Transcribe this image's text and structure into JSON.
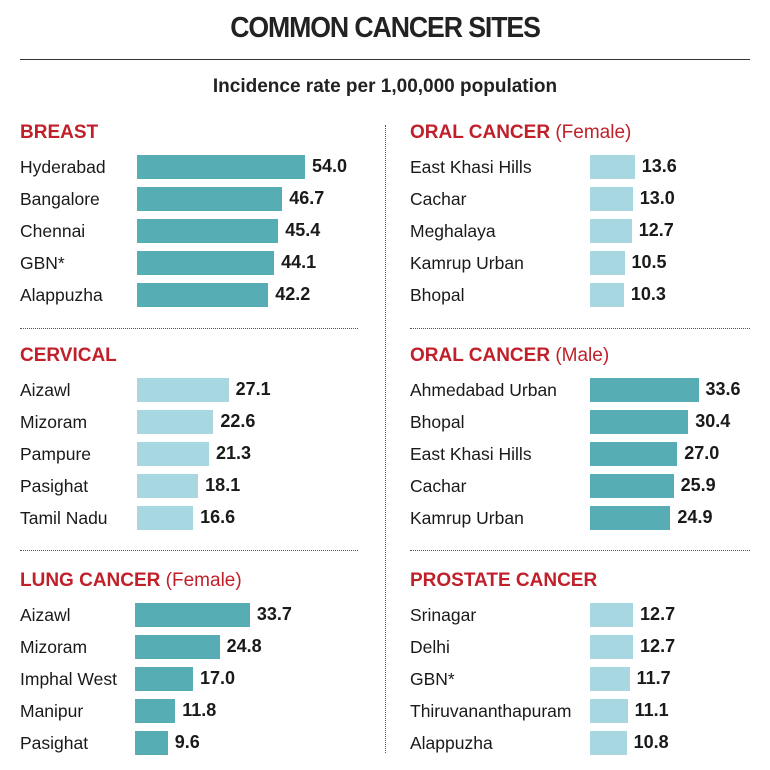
{
  "header": {
    "title": "COMMON CANCER SITES",
    "subtitle": "Incidence rate per 1,00,000 population"
  },
  "colors": {
    "dark_bar": "#56aeb4",
    "light_bar": "#a7d8e1",
    "heading": "#c0202a"
  },
  "chart_data": [
    {
      "type": "bar",
      "orientation": "horizontal",
      "title": "BREAST",
      "qualifier": "",
      "categories": [
        "Hyderabad",
        "Bangalore",
        "Chennai",
        "GBN*",
        "Alappuzha"
      ],
      "values": [
        54.0,
        46.7,
        45.4,
        44.1,
        42.2
      ],
      "value_labels": [
        "54.0",
        "46.7",
        "45.4",
        "44.1",
        "42.2"
      ],
      "bar_color": "#56aeb4"
    },
    {
      "type": "bar",
      "orientation": "horizontal",
      "title": "ORAL CANCER",
      "qualifier": "(Female)",
      "categories": [
        "East Khasi Hills",
        "Cachar",
        "Meghalaya",
        "Kamrup Urban",
        "Bhopal"
      ],
      "values": [
        13.6,
        13.0,
        12.7,
        10.5,
        10.3
      ],
      "value_labels": [
        "13.6",
        "13.0",
        "12.7",
        "10.5",
        "10.3"
      ],
      "bar_color": "#a7d8e1"
    },
    {
      "type": "bar",
      "orientation": "horizontal",
      "title": "CERVICAL",
      "qualifier": "",
      "categories": [
        "Aizawl",
        "Mizoram",
        "Pampure",
        "Pasighat",
        "Tamil Nadu"
      ],
      "values": [
        27.1,
        22.6,
        21.3,
        18.1,
        16.6
      ],
      "value_labels": [
        "27.1",
        "22.6",
        "21.3",
        "18.1",
        "16.6"
      ],
      "bar_color": "#a7d8e1"
    },
    {
      "type": "bar",
      "orientation": "horizontal",
      "title": "ORAL CANCER",
      "qualifier": "(Male)",
      "categories": [
        "Ahmedabad Urban",
        "Bhopal",
        "East Khasi Hills",
        "Cachar",
        "Kamrup Urban"
      ],
      "values": [
        33.6,
        30.4,
        27.0,
        25.9,
        24.9
      ],
      "value_labels": [
        "33.6",
        "30.4",
        "27.0",
        "25.9",
        "24.9"
      ],
      "bar_color": "#56aeb4"
    },
    {
      "type": "bar",
      "orientation": "horizontal",
      "title": "LUNG CANCER",
      "qualifier": "(Female)",
      "categories": [
        "Aizawl",
        "Mizoram",
        "Imphal West",
        "Manipur",
        "Pasighat"
      ],
      "values": [
        33.7,
        24.8,
        17.0,
        11.8,
        9.6
      ],
      "value_labels": [
        "33.7",
        "24.8",
        "17.0",
        "11.8",
        "9.6"
      ],
      "bar_color": "#56aeb4"
    },
    {
      "type": "bar",
      "orientation": "horizontal",
      "title": "PROSTATE CANCER",
      "qualifier": "",
      "categories": [
        "Srinagar",
        "Delhi",
        "GBN*",
        "Thiruvananthapuram",
        "Alappuzha"
      ],
      "values": [
        12.7,
        12.7,
        11.7,
        11.1,
        10.8
      ],
      "value_labels": [
        "12.7",
        "12.7",
        "11.7",
        "11.1",
        "10.8"
      ],
      "bar_color": "#a7d8e1"
    }
  ]
}
